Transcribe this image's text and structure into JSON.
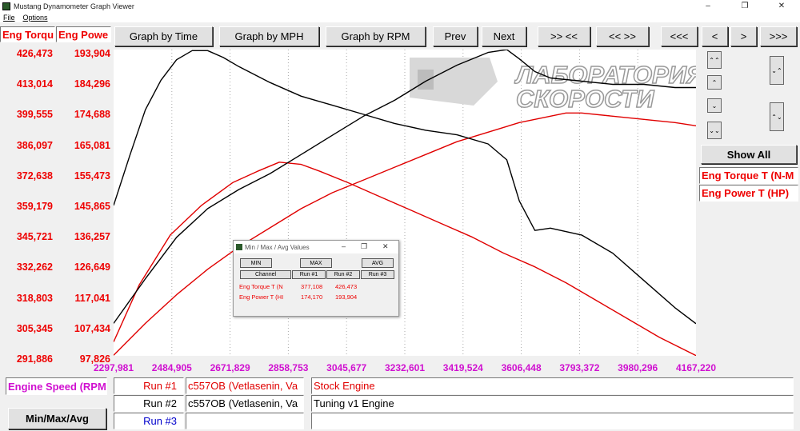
{
  "window": {
    "title": "Mustang Dynamometer Graph Viewer",
    "minimize": "–",
    "maximize": "❐",
    "close": "✕"
  },
  "menu": {
    "file": "File",
    "options": "Options"
  },
  "toolbar": {
    "by_time": "Graph by Time",
    "by_mph": "Graph by MPH",
    "by_rpm": "Graph by RPM",
    "prev": "Prev",
    "next": "Next",
    "zoom_in": ">> <<",
    "zoom_out": "<< >>",
    "far_left": "<<<",
    "left": "<",
    "right": ">",
    "far_right": ">>>"
  },
  "left_axis": {
    "torque_header": "Eng Torqu",
    "power_header": "Eng Powe",
    "torque_ticks": [
      "426,473",
      "413,014",
      "399,555",
      "386,097",
      "372,638",
      "359,179",
      "345,721",
      "332,262",
      "318,803",
      "305,345",
      "291,886"
    ],
    "power_ticks": [
      "193,904",
      "184,296",
      "174,688",
      "165,081",
      "155,473",
      "145,865",
      "136,257",
      "126,649",
      "117,041",
      "107,434",
      "97,826"
    ]
  },
  "x_axis": {
    "label": "Engine Speed (RPM",
    "ticks": [
      "2297,981",
      "2484,905",
      "2671,829",
      "2858,753",
      "3045,677",
      "3232,601",
      "3419,524",
      "3606,448",
      "3793,372",
      "3980,296",
      "4167,220"
    ]
  },
  "right_panel": {
    "show_all": "Show All",
    "channel1": "Eng Torque T (N-M",
    "channel2": "Eng Power T (HP)"
  },
  "watermark": {
    "line1": "ЛАБОРАТОРИЯ",
    "line2": "СКОРОСТИ"
  },
  "runs": [
    {
      "label": "Run #1",
      "vehicle": "c557OB (Vetlasenin, Va",
      "desc": "Stock Engine",
      "color": "#e00000"
    },
    {
      "label": "Run #2",
      "vehicle": "c557OB (Vetlasenin, Va",
      "desc": "Tuning v1 Engine",
      "color": "#000000"
    },
    {
      "label": "Run #3",
      "vehicle": "",
      "desc": "",
      "color": "#0000cc"
    }
  ],
  "minmax_button": "Min/Max/Avg",
  "dialog": {
    "title": "Min / Max / Avg Values",
    "min": "MIN",
    "max": "MAX",
    "avg": "AVG",
    "channel": "Channel",
    "run1": "Run #1",
    "run2": "Run #2",
    "run3": "Run #3",
    "rows": [
      {
        "name": "Eng Torque T (N",
        "run1": "377,108",
        "run2": "426,473"
      },
      {
        "name": "Eng Power T (HI",
        "run1": "174,170",
        "run2": "193,904"
      }
    ]
  },
  "chart_data": {
    "type": "line",
    "x_range": [
      2297.981,
      4167.22
    ],
    "torque_range": [
      291.886,
      426.473
    ],
    "power_range": [
      97.826,
      193.904
    ],
    "series": [
      {
        "name": "Run #1",
        "channel": "Eng Torque T",
        "color": "#e00000",
        "x": [
          2297.981,
          2380,
          2480,
          2580,
          2680,
          2760,
          2830,
          2900,
          2960,
          3050,
          3150,
          3250,
          3350,
          3450,
          3550,
          3650,
          3750,
          3850,
          3950,
          4050,
          4167.22
        ],
        "y": [
          298,
          323,
          345,
          358,
          368,
          373,
          377,
          376,
          373,
          368,
          362,
          356,
          350,
          344,
          337,
          331,
          324,
          316,
          308,
          300,
          292
        ]
      },
      {
        "name": "Run #1",
        "channel": "Eng Power T",
        "color": "#e00000",
        "x": [
          2297.981,
          2400,
          2500,
          2600,
          2700,
          2800,
          2900,
          3000,
          3100,
          3200,
          3300,
          3400,
          3500,
          3600,
          3700,
          3750,
          3800,
          3900,
          4000,
          4100,
          4167.22
        ],
        "y": [
          98,
          108,
          117,
          125,
          132,
          138,
          144,
          149,
          153,
          157,
          161,
          165,
          168,
          171,
          173,
          174,
          174,
          173,
          172,
          171,
          170
        ]
      },
      {
        "name": "Run #2",
        "channel": "Eng Torque T",
        "color": "#000000",
        "x": [
          2297.981,
          2350,
          2400,
          2450,
          2500,
          2550,
          2600,
          2650,
          2700,
          2800,
          2900,
          3000,
          3100,
          3200,
          3300,
          3400,
          3500,
          3560,
          3600,
          3650,
          3700,
          3800,
          3900,
          4000,
          4100,
          4167.22
        ],
        "y": [
          358,
          380,
          400,
          413,
          422,
          426,
          426,
          423,
          419,
          412,
          406,
          402,
          398,
          394,
          391,
          389,
          385,
          378,
          360,
          347,
          348,
          345,
          337,
          325,
          313,
          306
        ]
      },
      {
        "name": "Run #2",
        "channel": "Eng Power T",
        "color": "#000000",
        "x": [
          2297.981,
          2400,
          2500,
          2600,
          2700,
          2800,
          2900,
          3000,
          3100,
          3200,
          3300,
          3400,
          3500,
          3560,
          3600,
          3650,
          3700,
          3800,
          3900,
          4000,
          4100,
          4167.22
        ],
        "y": [
          108,
          122,
          135,
          144,
          150,
          155,
          161,
          167,
          173,
          178,
          184,
          189,
          193,
          193.9,
          191,
          187,
          185,
          184,
          183,
          183,
          182,
          182
        ]
      }
    ]
  }
}
